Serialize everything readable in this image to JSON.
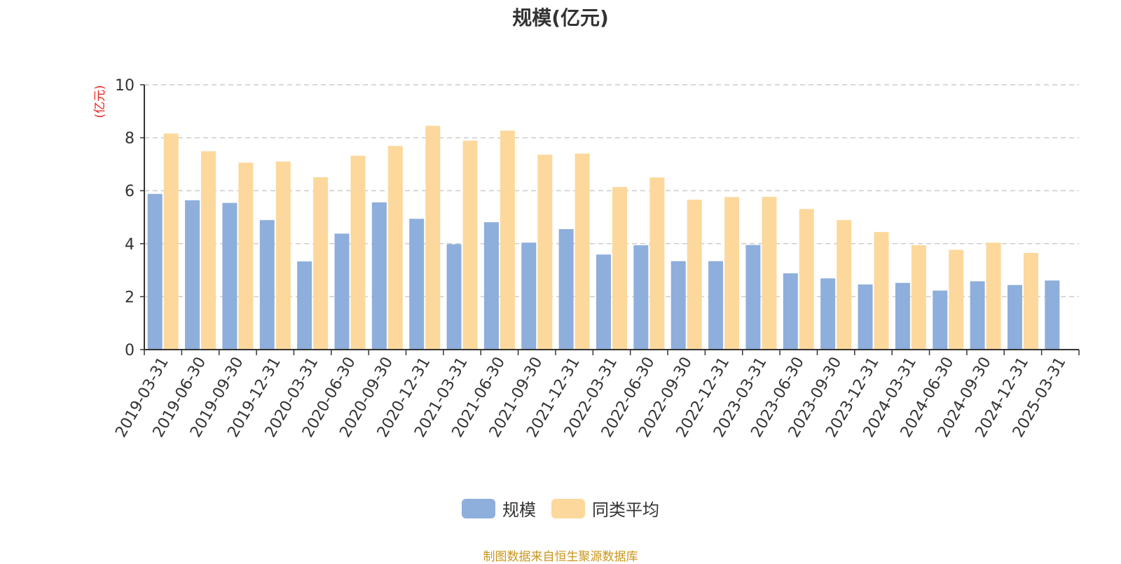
{
  "chart_data": {
    "type": "bar",
    "title": "规模(亿元)",
    "ylabel": "(亿元)",
    "xlabel": "",
    "ylim": [
      0,
      10
    ],
    "yticks": [
      0,
      2,
      4,
      6,
      8,
      10
    ],
    "grid": true,
    "legend_position": "bottom",
    "categories": [
      "2019-03-31",
      "2019-06-30",
      "2019-09-30",
      "2019-12-31",
      "2020-03-31",
      "2020-06-30",
      "2020-09-30",
      "2020-12-31",
      "2021-03-31",
      "2021-06-30",
      "2021-09-30",
      "2021-12-31",
      "2022-03-31",
      "2022-06-30",
      "2022-09-30",
      "2022-12-31",
      "2023-03-31",
      "2023-06-30",
      "2023-09-30",
      "2023-12-31",
      "2024-03-31",
      "2024-06-30",
      "2024-09-30",
      "2024-12-31",
      "2025-03-31"
    ],
    "series": [
      {
        "name": "规模",
        "color": "#8eaedc",
        "values": [
          5.88,
          5.64,
          5.54,
          4.89,
          3.33,
          4.38,
          5.56,
          4.94,
          3.98,
          4.81,
          4.04,
          4.55,
          3.59,
          3.94,
          3.34,
          3.34,
          3.95,
          2.88,
          2.69,
          2.46,
          2.52,
          2.23,
          2.58,
          2.44,
          2.61
        ]
      },
      {
        "name": "同类平均",
        "color": "#fdd89c",
        "values": [
          8.16,
          7.49,
          7.06,
          7.1,
          6.51,
          7.32,
          7.69,
          8.45,
          7.89,
          8.27,
          7.36,
          7.4,
          6.14,
          6.5,
          5.66,
          5.76,
          5.77,
          5.31,
          4.89,
          4.44,
          3.94,
          3.77,
          4.04,
          3.65,
          null
        ]
      }
    ]
  },
  "source_note": "制图数据来自恒生聚源数据库",
  "colors": {
    "axis": "#333333",
    "grid": "#cccccc",
    "ylabel": "#e8211c",
    "source": "#c9961a"
  }
}
